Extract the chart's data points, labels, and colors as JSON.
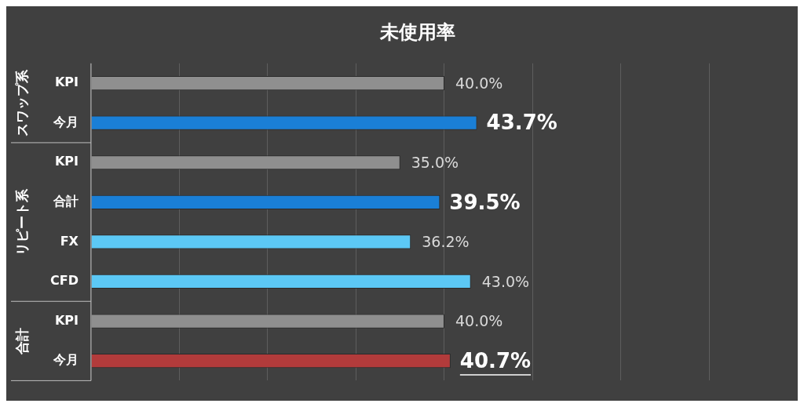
{
  "chart_data": {
    "type": "bar",
    "orientation": "horizontal",
    "title": "未使用率",
    "categories": [
      "KPI",
      "今月",
      "KPI",
      "合計",
      "FX",
      "CFD",
      "KPI",
      "今月"
    ],
    "values": [
      40.0,
      43.7,
      35.0,
      39.5,
      36.2,
      43.0,
      40.0,
      40.7
    ],
    "colors": [
      "#8f8f8f",
      "#1a7fd6",
      "#8f8f8f",
      "#1a7fd6",
      "#5cc8f5",
      "#5cc8f5",
      "#8f8f8f",
      "#b23b3b"
    ],
    "value_labels": [
      "40.0%",
      "43.7%",
      "35.0%",
      "39.5%",
      "36.2%",
      "43.0%",
      "40.0%",
      "40.7%"
    ],
    "xlim": [
      0,
      80
    ],
    "xticks": [
      {
        "value": 0,
        "label": null
      },
      {
        "value": 10,
        "label": null
      },
      {
        "value": 20,
        "label": null
      },
      {
        "value": 30,
        "label": null
      },
      {
        "value": 40,
        "label": null
      },
      {
        "value": 50,
        "label": null
      },
      {
        "value": 60,
        "label": null
      },
      {
        "value": 70,
        "label": null
      },
      {
        "value": 80,
        "label": null
      }
    ],
    "grid": "x",
    "legend": false,
    "tick_labels": "y",
    "annotations": [
      "スワップ系",
      "リピート系",
      "合計"
    ]
  }
}
